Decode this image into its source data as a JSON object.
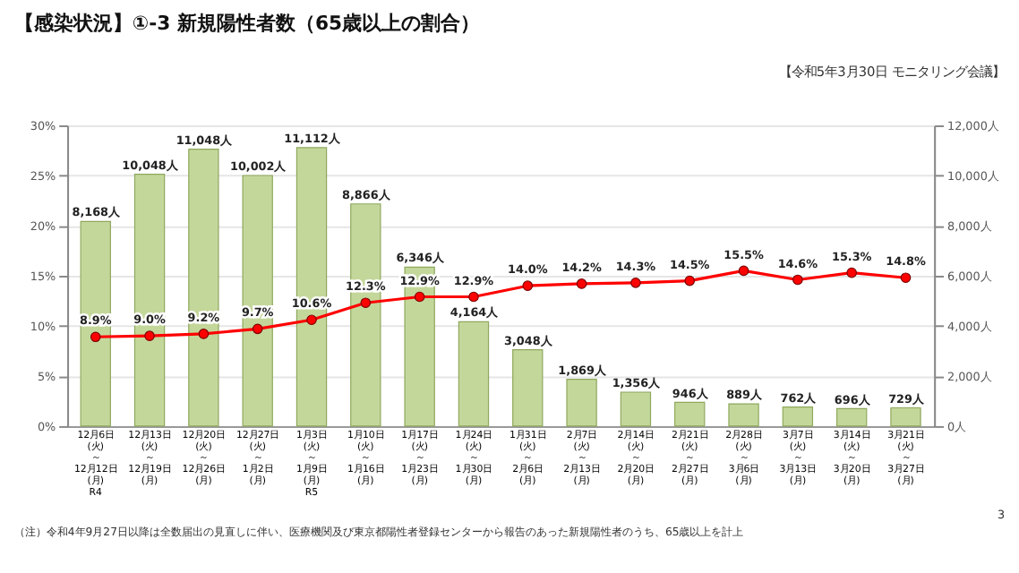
{
  "chart_data": {
    "type": "bar",
    "title": "【感染状況】①-3 新規陽性者数（65歳以上の割合）",
    "categories": [
      "12月6日\n(火)\n～\n12月12日\n(月)\nR4",
      "12月13日\n(火)\n～\n12月19日\n(月)",
      "12月20日\n(火)\n～\n12月26日\n(月)",
      "12月27日\n(火)\n～\n1月2日\n(月)",
      "1月3日\n(火)\n～\n1月9日\n(月)\nR5",
      "1月10日\n(火)\n～\n1月16日\n(月)",
      "1月17日\n(火)\n～\n1月23日\n(月)",
      "1月24日\n(火)\n～\n1月30日\n(月)",
      "1月31日\n(火)\n～\n2月6日\n(月)",
      "2月7日\n(火)\n～\n2月13日\n(月)",
      "2月14日\n(火)\n～\n2月20日\n(月)",
      "2月21日\n(火)\n～\n2月27日\n(月)",
      "2月28日\n(火)\n～\n3月6日\n(月)",
      "3月7日\n(火)\n～\n3月13日\n(月)",
      "3月14日\n(火)\n～\n3月20日\n(月)",
      "3月21日\n(火)\n～\n3月27日\n(月)"
    ],
    "series": [
      {
        "axis": "y2",
        "color": "#c4d79b",
        "values": [
          8168,
          10048,
          11048,
          10002,
          11112,
          8866,
          6346,
          4164,
          3048,
          1869,
          1356,
          946,
          889,
          762,
          696,
          729
        ],
        "value_labels": [
          "8,168人",
          "10,048人",
          "11,048人",
          "10,002人",
          "11,112人",
          "8,866人",
          "6,346人",
          "4,164人",
          "3,048人",
          "1,869人",
          "1,356人",
          "946人",
          "889人",
          "762人",
          "696人",
          "729人"
        ]
      },
      {
        "type": "line",
        "color": "#ff0000",
        "marker": "circle",
        "values": [
          8.9,
          9.0,
          9.2,
          9.7,
          10.6,
          12.3,
          12.9,
          12.9,
          14.0,
          14.2,
          14.3,
          14.5,
          15.5,
          14.6,
          15.3,
          14.8
        ],
        "value_labels": [
          "8.9%",
          "9.0%",
          "9.2%",
          "9.7%",
          "10.6%",
          "12.3%",
          "12.9%",
          "12.9%",
          "14.0%",
          "14.2%",
          "14.3%",
          "14.5%",
          "15.5%",
          "14.6%",
          "15.3%",
          "14.8%"
        ]
      }
    ],
    "ylim": [
      0,
      30
    ],
    "yticks": [
      {
        "value": 0,
        "label": "0%"
      },
      {
        "value": 5,
        "label": "5%"
      },
      {
        "value": 10,
        "label": "10%"
      },
      {
        "value": 15,
        "label": "15%"
      },
      {
        "value": 20,
        "label": "20%"
      },
      {
        "value": 25,
        "label": "25%"
      },
      {
        "value": 30,
        "label": "30%"
      }
    ],
    "y2lim": [
      0,
      12000
    ],
    "y2ticks": [
      {
        "value": 0,
        "label": "0人"
      },
      {
        "value": 2000,
        "label": "2,000人"
      },
      {
        "value": 4000,
        "label": "4,000人"
      },
      {
        "value": 6000,
        "label": "6,000人"
      },
      {
        "value": 8000,
        "label": "8,000人"
      },
      {
        "value": 10000,
        "label": "10,000人"
      },
      {
        "value": 12000,
        "label": "12,000人"
      }
    ],
    "grid": "y",
    "annotations": [
      "【令和5年3月30日 モニタリング会議】",
      "（注）令和4年9月27日以降は全数届出の見直しに伴い、医療機関及び東京都陽性者登録センターから報告のあった新規陽性者のうち、65歳以上を計上",
      "3"
    ]
  }
}
